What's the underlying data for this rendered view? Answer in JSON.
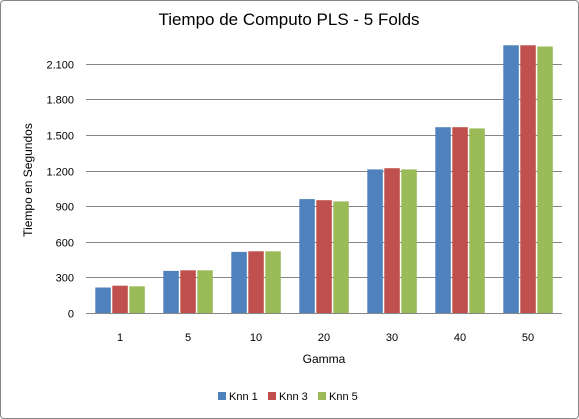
{
  "chart_data": {
    "type": "bar",
    "title": "Tiempo de Computo PLS - 5 Folds",
    "xlabel": "Gamma",
    "ylabel": "Tiempo en Segundos",
    "categories": [
      "1",
      "5",
      "10",
      "20",
      "30",
      "40",
      "50"
    ],
    "series": [
      {
        "name": "Knn 1",
        "color": "#4f81bd",
        "values": [
          215,
          355,
          515,
          960,
          1210,
          1565,
          2255
        ]
      },
      {
        "name": "Knn 3",
        "color": "#c0504d",
        "values": [
          230,
          360,
          520,
          950,
          1220,
          1565,
          2255
        ]
      },
      {
        "name": "Knn 5",
        "color": "#9bbb59",
        "values": [
          225,
          360,
          520,
          940,
          1210,
          1555,
          2245
        ]
      }
    ],
    "ylim": [
      0,
      2300
    ],
    "yticks": [
      {
        "value": 0,
        "label": "0"
      },
      {
        "value": 300,
        "label": "300"
      },
      {
        "value": 600,
        "label": "600"
      },
      {
        "value": 900,
        "label": "900"
      },
      {
        "value": 1200,
        "label": "1.200"
      },
      {
        "value": 1500,
        "label": "1.500"
      },
      {
        "value": 1800,
        "label": "1.800"
      },
      {
        "value": 2100,
        "label": "2.100"
      }
    ],
    "grid": true,
    "legend": "bottom"
  }
}
